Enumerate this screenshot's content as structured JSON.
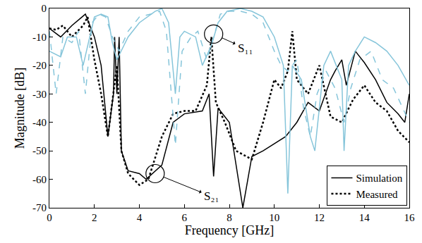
{
  "chart_data": {
    "type": "line",
    "xlabel": "Frequency [GHz]",
    "ylabel": "Magnitude [dB]",
    "xlim": [
      0,
      16
    ],
    "ylim": [
      -70,
      0
    ],
    "xticks": [
      0,
      2,
      4,
      6,
      8,
      10,
      12,
      14,
      16
    ],
    "yticks": [
      -70,
      -60,
      -50,
      -40,
      -30,
      -20,
      -10,
      0
    ],
    "grid": false,
    "legend": "bottom right",
    "series": [
      {
        "name": "Simulation",
        "color": "#000000",
        "line_style": "solid",
        "x": [
          0,
          0.5,
          1.0,
          1.6,
          2.0,
          2.3,
          2.6,
          2.85,
          2.9,
          3.0,
          3.1,
          3.2,
          3.5,
          4.0,
          4.3,
          5.0,
          5.5,
          6.0,
          6.8,
          7.1,
          7.3,
          7.5,
          8.0,
          8.3,
          8.6,
          9.0,
          9.5,
          10.5,
          11.0,
          11.5,
          12.0,
          12.5,
          12.7,
          13.0,
          13.2,
          13.6,
          14.0,
          14.5,
          15.0,
          15.5,
          15.8,
          16.0
        ],
        "values": [
          -7,
          -10,
          -6,
          -2,
          -10,
          -20,
          -45,
          -30,
          -10,
          -30,
          -10,
          -50,
          -57,
          -58,
          -60,
          -55,
          -40,
          -37,
          -36,
          -30,
          -59,
          -35,
          -40,
          -55,
          -70,
          -52,
          -50,
          -45,
          -40,
          -33,
          -36,
          -25,
          -22,
          -18,
          -27,
          -15,
          -19,
          -25,
          -33,
          -37,
          -40,
          -30
        ]
      },
      {
        "name": "Measured",
        "color": "#000000",
        "line_style": "dotted",
        "x": [
          0,
          0.3,
          0.6,
          1.0,
          1.5,
          1.7,
          2.0,
          2.3,
          2.6,
          3.0,
          3.2,
          3.5,
          4.0,
          4.4,
          5.0,
          5.5,
          6.0,
          6.5,
          7.0,
          7.2,
          7.4,
          7.8,
          8.3,
          9.0,
          9.5,
          10.0,
          10.3,
          10.6,
          10.8,
          11.0,
          11.5,
          12.0,
          12.5,
          13.0,
          13.5,
          14.0,
          14.5,
          15.0,
          15.5,
          16.0
        ],
        "values": [
          -7,
          -7.5,
          -6,
          -10,
          -6,
          -3,
          -18,
          -30,
          -45,
          -20,
          -50,
          -58,
          -62,
          -60,
          -45,
          -37,
          -36,
          -36,
          -27,
          -10,
          -33,
          -40,
          -50,
          -53,
          -40,
          -25,
          -28,
          -22,
          -8,
          -25,
          -30,
          -20,
          -38,
          -40,
          -32,
          -27,
          -33,
          -36,
          -43,
          -47
        ]
      },
      {
        "name": "Simulation",
        "color": "#86c5da",
        "line_style": "solid",
        "x": [
          0,
          0.5,
          0.8,
          1.2,
          1.5,
          1.8,
          2.0,
          2.3,
          2.6,
          2.8,
          3.0,
          3.5,
          4.0,
          4.7,
          5.0,
          5.3,
          5.6,
          5.8,
          6.0,
          6.5,
          6.8,
          7.2,
          7.5,
          7.9,
          8.5,
          9.0,
          9.5,
          10.0,
          10.4,
          10.6,
          10.8,
          11.2,
          11.6,
          11.8,
          12.2,
          12.5,
          13.0,
          13.1,
          13.3,
          13.6,
          14.0,
          14.5,
          15.0,
          15.5,
          16.0
        ],
        "values": [
          -15,
          -17,
          -10,
          -10,
          -20,
          -10,
          -3,
          -2,
          -3,
          -12,
          -18,
          -10,
          -5,
          -1,
          0,
          -5,
          -30,
          -10,
          -8,
          -10,
          -20,
          -13,
          -5,
          -1,
          0,
          -1,
          -3,
          -10,
          -20,
          -65,
          -20,
          -25,
          -45,
          -50,
          -20,
          -15,
          -25,
          -50,
          -20,
          -15,
          -10,
          -12,
          -15,
          -20,
          -27
        ]
      },
      {
        "name": "Measured",
        "color": "#86c5da",
        "line_style": "dashed",
        "x": [
          0,
          0.3,
          0.6,
          1.0,
          1.3,
          1.6,
          1.9,
          2.2,
          2.5,
          2.8,
          3.1,
          3.5,
          4.0,
          4.5,
          4.9,
          5.2,
          5.6,
          5.9,
          6.3,
          6.6,
          7.0,
          7.3,
          7.6,
          8.0,
          8.5,
          9.0,
          9.5,
          10.0,
          10.3,
          10.6,
          11.0,
          11.3,
          11.6,
          11.9,
          12.3,
          12.7,
          13.1,
          13.4,
          13.8,
          14.3,
          14.8,
          15.3,
          15.7,
          16.0
        ],
        "values": [
          -8,
          -30,
          -10,
          -12,
          -8,
          -30,
          -5,
          -2,
          -3,
          -10,
          -15,
          -8,
          -3,
          -2,
          -1,
          -8,
          -48,
          -15,
          -10,
          -8,
          -18,
          -10,
          -2,
          -1,
          -1,
          -2,
          -5,
          -15,
          -20,
          -22,
          -18,
          -35,
          -45,
          -30,
          -22,
          -28,
          -40,
          -28,
          -18,
          -15,
          -25,
          -28,
          -35,
          -40
        ]
      }
    ],
    "annotations": [
      {
        "text": "S₁₁",
        "x": 8.7,
        "y": -14,
        "target_x": 7.3,
        "target_y": -9
      },
      {
        "text": "S₂₁",
        "x": 7.2,
        "y": -66,
        "target_x": 4.7,
        "target_y": -58
      }
    ]
  }
}
